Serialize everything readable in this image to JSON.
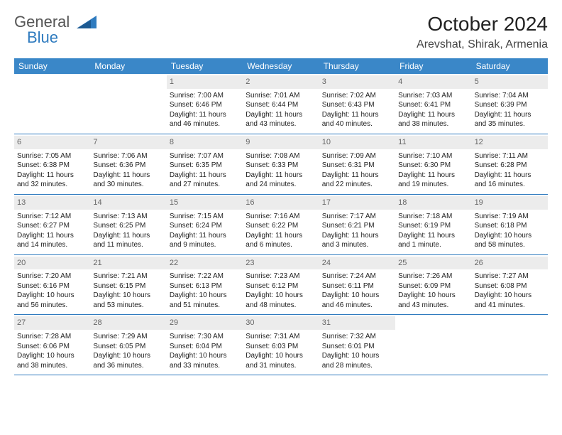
{
  "logo": {
    "text1": "General",
    "text2": "Blue"
  },
  "title": "October 2024",
  "location": "Arevshat, Shirak, Armenia",
  "colors": {
    "header_bg": "#3a87c8",
    "header_text": "#ffffff",
    "daynum_bg": "#ececec",
    "daynum_text": "#666666",
    "rule": "#2f7bbf",
    "logo_gray": "#555555",
    "logo_blue": "#2f7bbf"
  },
  "day_names": [
    "Sunday",
    "Monday",
    "Tuesday",
    "Wednesday",
    "Thursday",
    "Friday",
    "Saturday"
  ],
  "weeks": [
    [
      null,
      null,
      {
        "n": "1",
        "sr": "Sunrise: 7:00 AM",
        "ss": "Sunset: 6:46 PM",
        "dl1": "Daylight: 11 hours",
        "dl2": "and 46 minutes."
      },
      {
        "n": "2",
        "sr": "Sunrise: 7:01 AM",
        "ss": "Sunset: 6:44 PM",
        "dl1": "Daylight: 11 hours",
        "dl2": "and 43 minutes."
      },
      {
        "n": "3",
        "sr": "Sunrise: 7:02 AM",
        "ss": "Sunset: 6:43 PM",
        "dl1": "Daylight: 11 hours",
        "dl2": "and 40 minutes."
      },
      {
        "n": "4",
        "sr": "Sunrise: 7:03 AM",
        "ss": "Sunset: 6:41 PM",
        "dl1": "Daylight: 11 hours",
        "dl2": "and 38 minutes."
      },
      {
        "n": "5",
        "sr": "Sunrise: 7:04 AM",
        "ss": "Sunset: 6:39 PM",
        "dl1": "Daylight: 11 hours",
        "dl2": "and 35 minutes."
      }
    ],
    [
      {
        "n": "6",
        "sr": "Sunrise: 7:05 AM",
        "ss": "Sunset: 6:38 PM",
        "dl1": "Daylight: 11 hours",
        "dl2": "and 32 minutes."
      },
      {
        "n": "7",
        "sr": "Sunrise: 7:06 AM",
        "ss": "Sunset: 6:36 PM",
        "dl1": "Daylight: 11 hours",
        "dl2": "and 30 minutes."
      },
      {
        "n": "8",
        "sr": "Sunrise: 7:07 AM",
        "ss": "Sunset: 6:35 PM",
        "dl1": "Daylight: 11 hours",
        "dl2": "and 27 minutes."
      },
      {
        "n": "9",
        "sr": "Sunrise: 7:08 AM",
        "ss": "Sunset: 6:33 PM",
        "dl1": "Daylight: 11 hours",
        "dl2": "and 24 minutes."
      },
      {
        "n": "10",
        "sr": "Sunrise: 7:09 AM",
        "ss": "Sunset: 6:31 PM",
        "dl1": "Daylight: 11 hours",
        "dl2": "and 22 minutes."
      },
      {
        "n": "11",
        "sr": "Sunrise: 7:10 AM",
        "ss": "Sunset: 6:30 PM",
        "dl1": "Daylight: 11 hours",
        "dl2": "and 19 minutes."
      },
      {
        "n": "12",
        "sr": "Sunrise: 7:11 AM",
        "ss": "Sunset: 6:28 PM",
        "dl1": "Daylight: 11 hours",
        "dl2": "and 16 minutes."
      }
    ],
    [
      {
        "n": "13",
        "sr": "Sunrise: 7:12 AM",
        "ss": "Sunset: 6:27 PM",
        "dl1": "Daylight: 11 hours",
        "dl2": "and 14 minutes."
      },
      {
        "n": "14",
        "sr": "Sunrise: 7:13 AM",
        "ss": "Sunset: 6:25 PM",
        "dl1": "Daylight: 11 hours",
        "dl2": "and 11 minutes."
      },
      {
        "n": "15",
        "sr": "Sunrise: 7:15 AM",
        "ss": "Sunset: 6:24 PM",
        "dl1": "Daylight: 11 hours",
        "dl2": "and 9 minutes."
      },
      {
        "n": "16",
        "sr": "Sunrise: 7:16 AM",
        "ss": "Sunset: 6:22 PM",
        "dl1": "Daylight: 11 hours",
        "dl2": "and 6 minutes."
      },
      {
        "n": "17",
        "sr": "Sunrise: 7:17 AM",
        "ss": "Sunset: 6:21 PM",
        "dl1": "Daylight: 11 hours",
        "dl2": "and 3 minutes."
      },
      {
        "n": "18",
        "sr": "Sunrise: 7:18 AM",
        "ss": "Sunset: 6:19 PM",
        "dl1": "Daylight: 11 hours",
        "dl2": "and 1 minute."
      },
      {
        "n": "19",
        "sr": "Sunrise: 7:19 AM",
        "ss": "Sunset: 6:18 PM",
        "dl1": "Daylight: 10 hours",
        "dl2": "and 58 minutes."
      }
    ],
    [
      {
        "n": "20",
        "sr": "Sunrise: 7:20 AM",
        "ss": "Sunset: 6:16 PM",
        "dl1": "Daylight: 10 hours",
        "dl2": "and 56 minutes."
      },
      {
        "n": "21",
        "sr": "Sunrise: 7:21 AM",
        "ss": "Sunset: 6:15 PM",
        "dl1": "Daylight: 10 hours",
        "dl2": "and 53 minutes."
      },
      {
        "n": "22",
        "sr": "Sunrise: 7:22 AM",
        "ss": "Sunset: 6:13 PM",
        "dl1": "Daylight: 10 hours",
        "dl2": "and 51 minutes."
      },
      {
        "n": "23",
        "sr": "Sunrise: 7:23 AM",
        "ss": "Sunset: 6:12 PM",
        "dl1": "Daylight: 10 hours",
        "dl2": "and 48 minutes."
      },
      {
        "n": "24",
        "sr": "Sunrise: 7:24 AM",
        "ss": "Sunset: 6:11 PM",
        "dl1": "Daylight: 10 hours",
        "dl2": "and 46 minutes."
      },
      {
        "n": "25",
        "sr": "Sunrise: 7:26 AM",
        "ss": "Sunset: 6:09 PM",
        "dl1": "Daylight: 10 hours",
        "dl2": "and 43 minutes."
      },
      {
        "n": "26",
        "sr": "Sunrise: 7:27 AM",
        "ss": "Sunset: 6:08 PM",
        "dl1": "Daylight: 10 hours",
        "dl2": "and 41 minutes."
      }
    ],
    [
      {
        "n": "27",
        "sr": "Sunrise: 7:28 AM",
        "ss": "Sunset: 6:06 PM",
        "dl1": "Daylight: 10 hours",
        "dl2": "and 38 minutes."
      },
      {
        "n": "28",
        "sr": "Sunrise: 7:29 AM",
        "ss": "Sunset: 6:05 PM",
        "dl1": "Daylight: 10 hours",
        "dl2": "and 36 minutes."
      },
      {
        "n": "29",
        "sr": "Sunrise: 7:30 AM",
        "ss": "Sunset: 6:04 PM",
        "dl1": "Daylight: 10 hours",
        "dl2": "and 33 minutes."
      },
      {
        "n": "30",
        "sr": "Sunrise: 7:31 AM",
        "ss": "Sunset: 6:03 PM",
        "dl1": "Daylight: 10 hours",
        "dl2": "and 31 minutes."
      },
      {
        "n": "31",
        "sr": "Sunrise: 7:32 AM",
        "ss": "Sunset: 6:01 PM",
        "dl1": "Daylight: 10 hours",
        "dl2": "and 28 minutes."
      },
      null,
      null
    ]
  ]
}
